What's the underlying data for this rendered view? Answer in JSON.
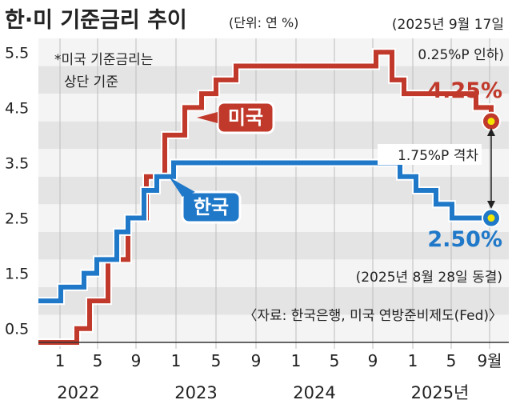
{
  "chart_data": {
    "type": "line",
    "title": "한·미 기준금리 추이",
    "unit_note": "(단위: 연 %)",
    "footnote_lines": [
      "*미국 기준금리는",
      "상단 기준"
    ],
    "source": "〈자료: 한국은행, 미국 연방준비제도(Fed)〉",
    "y_ticks": [
      "0.5",
      "1.5",
      "2.5",
      "3.5",
      "4.5",
      "5.5"
    ],
    "ylim": [
      0.25,
      5.75
    ],
    "month_ticks": [
      "1",
      "5",
      "9",
      "1",
      "5",
      "9",
      "1",
      "5",
      "9",
      "1",
      "5",
      "9월"
    ],
    "year_labels": [
      "2022",
      "2023",
      "2024",
      "2025년"
    ],
    "series": [
      {
        "name": "미국",
        "color": "#c0392b",
        "values": [
          0.25,
          0.5,
          1.0,
          1.75,
          2.5,
          3.25,
          4.0,
          4.5,
          4.75,
          5.0,
          5.25,
          5.5,
          5.0,
          4.75,
          4.5,
          4.25
        ],
        "end_label": "4.25%"
      },
      {
        "name": "한국",
        "color": "#1f78c8",
        "values": [
          1.0,
          1.25,
          1.5,
          1.75,
          2.25,
          2.5,
          3.0,
          3.25,
          3.5,
          3.25,
          3.0,
          2.75,
          2.5
        ],
        "end_label": "2.50%"
      }
    ],
    "annotations": {
      "us_cut_line1": "(2025년 9월 17일",
      "us_cut_line2": "0.25%P 인하)",
      "gap": "1.75%P 격차",
      "kr_hold": "(2025년 8월 28일 동결)"
    },
    "highlight_color": "#f2e600"
  }
}
